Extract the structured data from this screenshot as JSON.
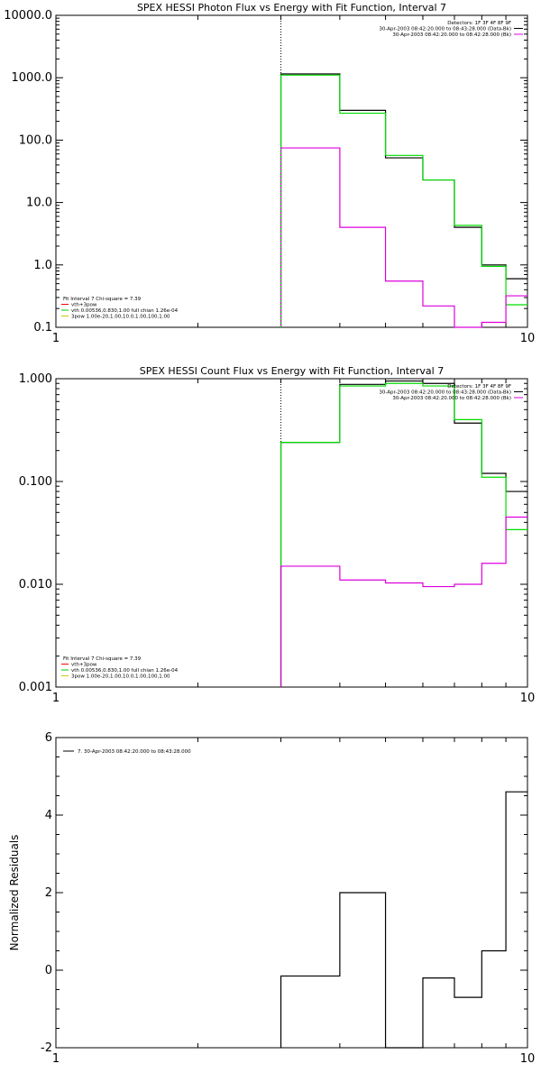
{
  "chart_data": [
    {
      "type": "line",
      "title": "SPEX HESSI Photon Flux vs Energy with Fit Function, Interval 7",
      "xlabel": "",
      "ylabel": "",
      "xscale": "log",
      "yscale": "log",
      "xlim": [
        1,
        10
      ],
      "ylim": [
        0.1,
        10000
      ],
      "xticks": [
        {
          "v": 1,
          "label": "1"
        },
        {
          "v": 10,
          "label": "10"
        }
      ],
      "yticks": [
        {
          "v": 0.1,
          "label": "0.1"
        },
        {
          "v": 1,
          "label": "1.0"
        },
        {
          "v": 10,
          "label": "10.0"
        },
        {
          "v": 100,
          "label": "100.0"
        },
        {
          "v": 1000,
          "label": "1000.0"
        },
        {
          "v": 10000,
          "label": "10000.0"
        }
      ],
      "vline": 3.0,
      "legend_top": [
        "Detectors: 1F 3F 4F 8F 9F",
        "30-Apr-2003 08:42:20.000 to 08:43:28.000 (Data-Bk)",
        "30-Apr-2003 08:42:20.000 to 08:42:28.000 (Bk)"
      ],
      "legend_bottom": [
        {
          "text": "Fit Interval 7   Chi-square = 7.39",
          "color": ""
        },
        {
          "text": "vth+3pow",
          "color": "#ff0000"
        },
        {
          "text": "vth 0.00536,0.830,1.00   full chian 1.26e-04",
          "color": "#00cc00"
        },
        {
          "text": "3pow 1.00e-20,1.00,10.0,1.00,100,1.00",
          "color": "#cccc00"
        }
      ],
      "bin_edges": [
        3.0,
        4.0,
        5.0,
        6.0,
        7.0,
        8.0,
        9.0,
        10.0
      ],
      "series": [
        {
          "color": "#000000",
          "values": [
            1150,
            300,
            52,
            23,
            4.0,
            1.0,
            0.6
          ]
        },
        {
          "color": "#00dd00",
          "values": [
            1100,
            270,
            57,
            23,
            4.3,
            0.95,
            0.23
          ]
        },
        {
          "color": "#dd00dd",
          "values": [
            75,
            4.0,
            0.55,
            0.22,
            0.095,
            0.12,
            0.32
          ]
        }
      ],
      "side_vlines": [
        {
          "color": "#00dd00",
          "x": 3.0,
          "y0": 0.1,
          "y1": 1100,
          "dash": true
        }
      ]
    },
    {
      "type": "line",
      "title": "SPEX HESSI Count Flux vs Energy with Fit Function, Interval 7",
      "xlabel": "",
      "ylabel": "",
      "xscale": "log",
      "yscale": "log",
      "xlim": [
        1,
        10
      ],
      "ylim": [
        0.001,
        1.0
      ],
      "xticks": [
        {
          "v": 1,
          "label": "1"
        },
        {
          "v": 10,
          "label": "10"
        }
      ],
      "yticks": [
        {
          "v": 0.001,
          "label": "0.001"
        },
        {
          "v": 0.01,
          "label": "0.010"
        },
        {
          "v": 0.1,
          "label": "0.100"
        },
        {
          "v": 1,
          "label": "1.000"
        }
      ],
      "vline": 3.0,
      "legend_top": [
        "Detectors: 1F 3F 4F 8F 9F",
        "30-Apr-2003 08:42:20.000 to 08:43:28.000 (Data-Bk)",
        "30-Apr-2003 08:42:20.000 to 08:42:28.000 (Bk)"
      ],
      "legend_bottom": [
        {
          "text": "Fit Interval 7   Chi-square = 7.39",
          "color": ""
        },
        {
          "text": "vth+3pow",
          "color": "#ff0000"
        },
        {
          "text": "vth 0.00536,0.830,1.00   full chian 1.26e-04",
          "color": "#00cc00"
        },
        {
          "text": "3pow 1.00e-20,1.00,10.0,1.00,100,1.00",
          "color": "#cccc00"
        }
      ],
      "bin_edges": [
        3.0,
        4.0,
        5.0,
        6.0,
        7.0,
        8.0,
        9.0,
        10.0
      ],
      "series": [
        {
          "color": "#000000",
          "values": [
            0.24,
            0.88,
            0.95,
            0.9,
            0.37,
            0.12,
            0.08
          ]
        },
        {
          "color": "#00dd00",
          "values": [
            0.24,
            0.85,
            0.9,
            0.85,
            0.4,
            0.11,
            0.034
          ]
        },
        {
          "color": "#dd00dd",
          "values": [
            0.015,
            0.011,
            0.0103,
            0.0095,
            0.01,
            0.016,
            0.045
          ]
        }
      ],
      "side_vlines": []
    },
    {
      "type": "line",
      "title": "",
      "xlabel": "",
      "ylabel": "Normalized Residuals",
      "xscale": "log",
      "yscale": "linear",
      "xlim": [
        1,
        10
      ],
      "ylim": [
        -2,
        6
      ],
      "xticks": [
        {
          "v": 1,
          "label": "1"
        },
        {
          "v": 10,
          "label": "10"
        }
      ],
      "yticks": [
        {
          "v": -2,
          "label": "-2"
        },
        {
          "v": 0,
          "label": "0"
        },
        {
          "v": 2,
          "label": "2"
        },
        {
          "v": 4,
          "label": "4"
        },
        {
          "v": 6,
          "label": "6"
        }
      ],
      "legend": "7. 30-Apr-2003 08:42:20.000 to 08:43:28.000",
      "bin_edges": [
        3.0,
        4.0,
        5.0,
        6.0,
        7.0,
        8.0,
        9.0,
        10.0
      ],
      "series": [
        {
          "color": "#000000",
          "values": [
            -0.15,
            2.0,
            -2.05,
            -0.2,
            -0.7,
            0.5,
            4.6
          ]
        }
      ]
    }
  ]
}
